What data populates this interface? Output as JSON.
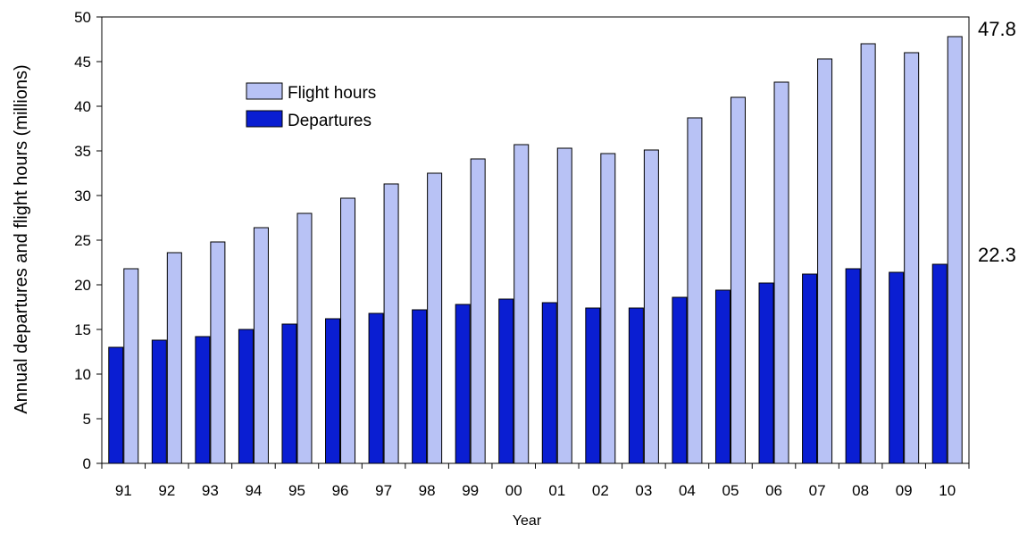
{
  "chart_data": {
    "type": "bar",
    "categories": [
      "91",
      "92",
      "93",
      "94",
      "95",
      "96",
      "97",
      "98",
      "99",
      "00",
      "01",
      "02",
      "03",
      "04",
      "05",
      "06",
      "07",
      "08",
      "09",
      "10"
    ],
    "series": [
      {
        "name": "Departures",
        "color": "#0a1ed2",
        "values": [
          13.0,
          13.8,
          14.2,
          15.0,
          15.6,
          16.2,
          16.8,
          17.2,
          17.8,
          18.4,
          18.0,
          17.4,
          17.4,
          18.6,
          19.4,
          20.2,
          21.2,
          21.8,
          21.4,
          22.3
        ]
      },
      {
        "name": "Flight hours",
        "color": "#b8c2f5",
        "values": [
          21.8,
          23.6,
          24.8,
          26.4,
          28.0,
          29.7,
          31.3,
          32.5,
          34.1,
          35.7,
          35.3,
          34.7,
          35.1,
          38.7,
          41.0,
          42.7,
          45.3,
          47.0,
          46.0,
          47.8
        ]
      }
    ],
    "legend_order": [
      "Flight hours",
      "Departures"
    ],
    "legend_placement": "top-left",
    "xlabel": "Year",
    "ylabel": "Annual departures and flight hours (millions)",
    "ylim": [
      0,
      50
    ],
    "yticks": [
      0,
      5,
      10,
      15,
      20,
      25,
      30,
      35,
      40,
      45,
      50
    ],
    "grid": false,
    "end_labels": {
      "flight_hours": "47.8",
      "departures": "22.3"
    }
  }
}
